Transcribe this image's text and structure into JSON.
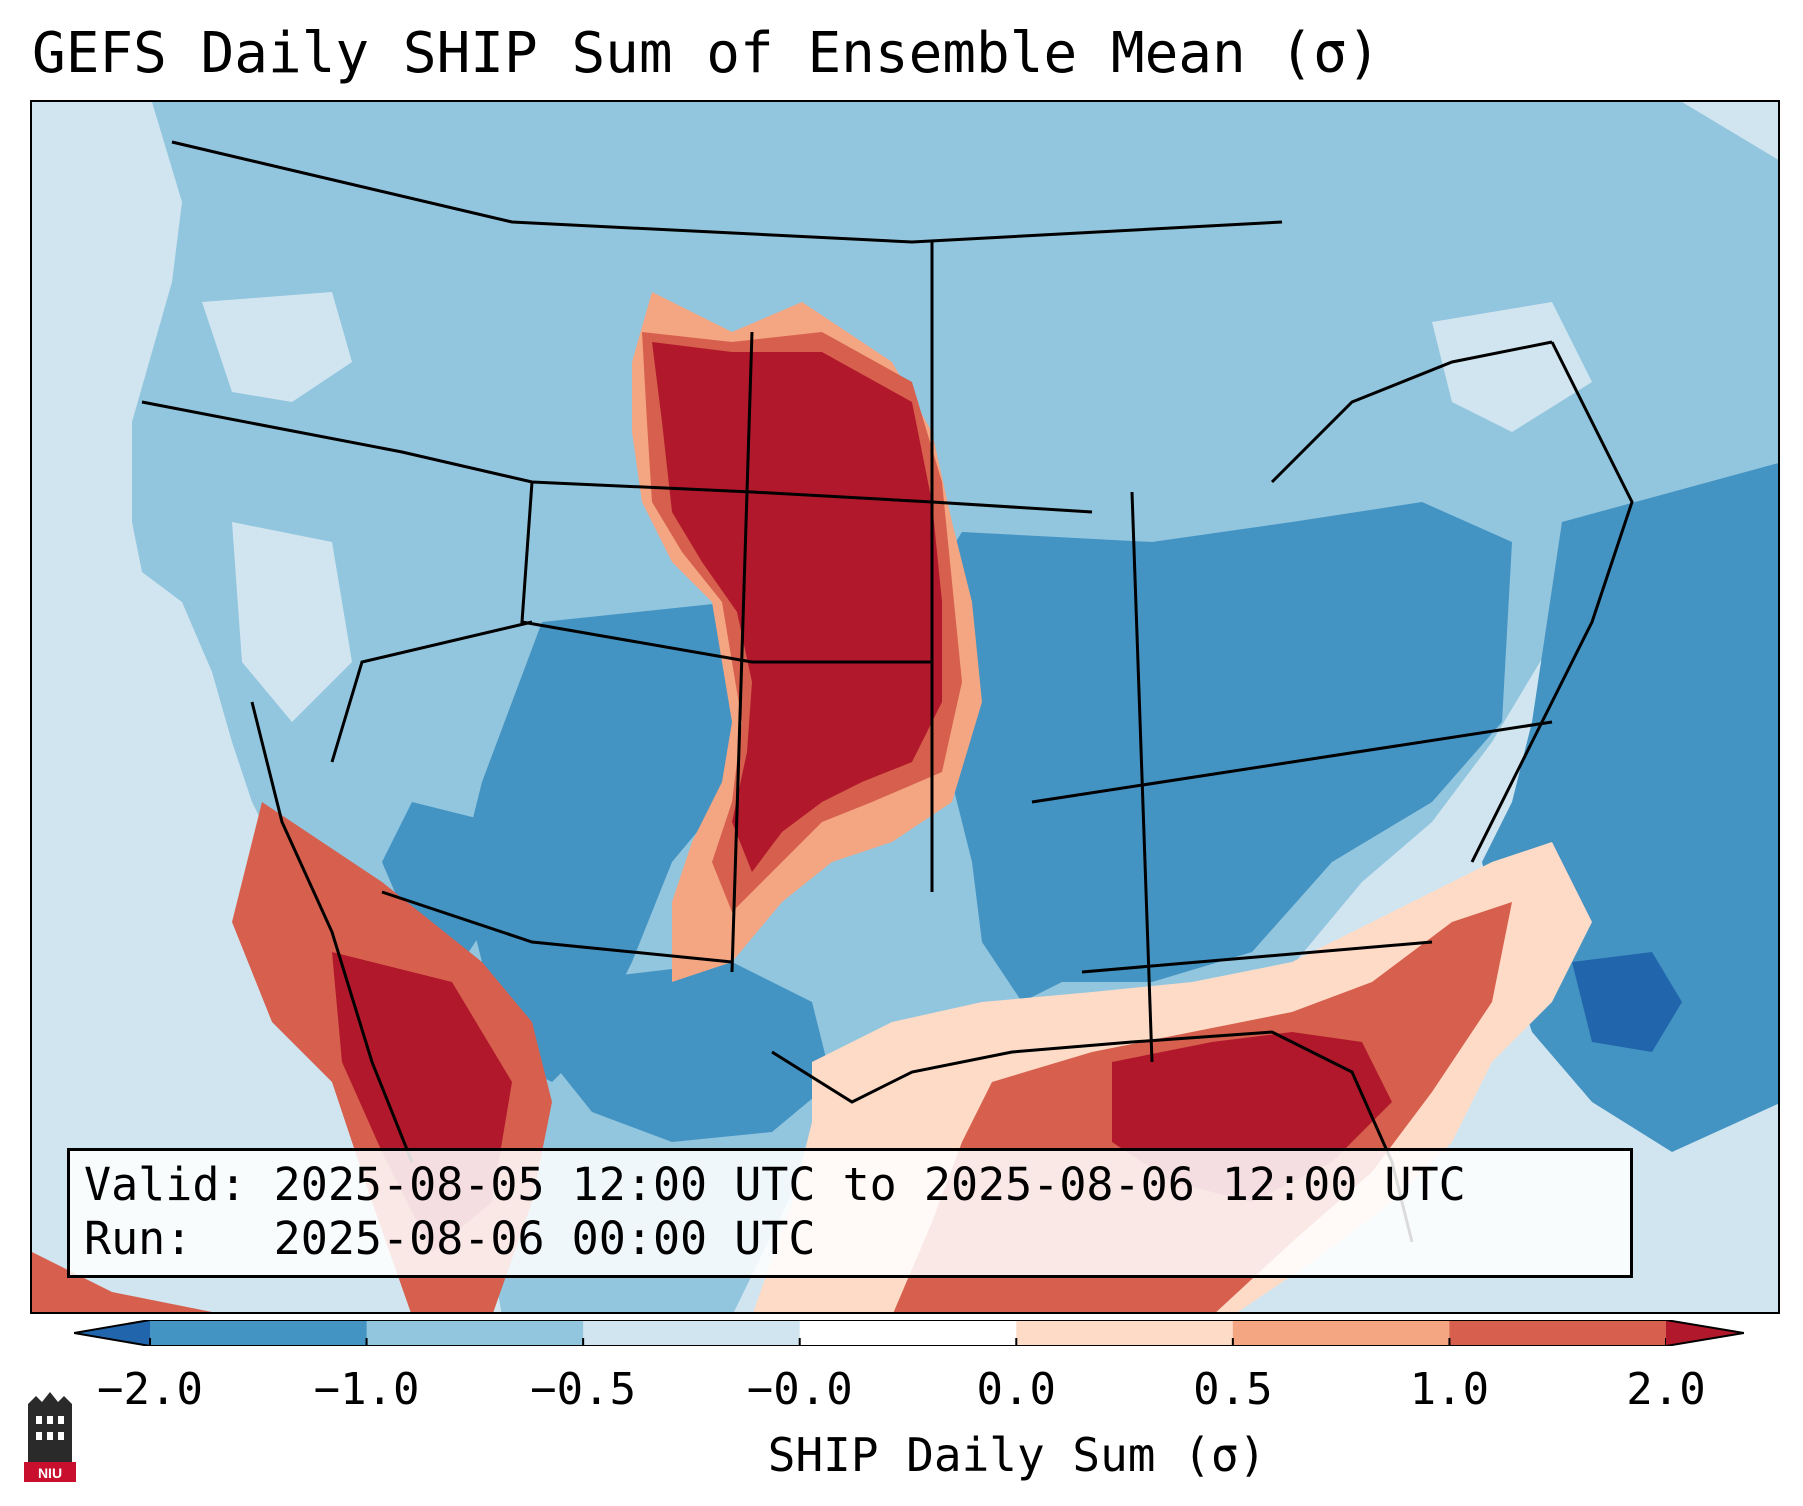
{
  "title": "GEFS Daily SHIP Sum of Ensemble Mean (σ)",
  "info": {
    "valid_line": "Valid: 2025-08-05 12:00 UTC to 2025-08-06 12:00 UTC",
    "run_line": "Run:   2025-08-06 00:00 UTC"
  },
  "colorbar": {
    "label": "SHIP Daily Sum (σ)",
    "tick_labels": [
      "−2.0",
      "−1.0",
      "−0.5",
      "−0.0",
      "0.0",
      "0.5",
      "1.0",
      "2.0"
    ],
    "bins": [
      {
        "range": "-2.0 to -1.0",
        "color": "#4393c3"
      },
      {
        "range": "-1.0 to -0.5",
        "color": "#92c5de"
      },
      {
        "range": "-0.5 to -0.0",
        "color": "#d1e5f0"
      },
      {
        "range": "-0.0 to 0.0",
        "color": "#ffffff"
      },
      {
        "range": "0.0 to 0.5",
        "color": "#fddbc7"
      },
      {
        "range": "0.5 to 1.0",
        "color": "#f4a582"
      },
      {
        "range": "1.0 to 2.0",
        "color": "#d6604d"
      }
    ],
    "under_color": "#2166ac",
    "over_color": "#b2182b"
  },
  "colors": {
    "ocean_light": "#d1e5f0",
    "neg_mid": "#92c5de",
    "neg_strong": "#4393c3",
    "neg_extreme": "#2166ac",
    "pos_light": "#fddbc7",
    "pos_mid": "#f4a582",
    "pos_strong": "#d6604d",
    "pos_extreme": "#b2182b"
  },
  "logo": {
    "text": "NIU",
    "icon": "university-tower-icon"
  }
}
